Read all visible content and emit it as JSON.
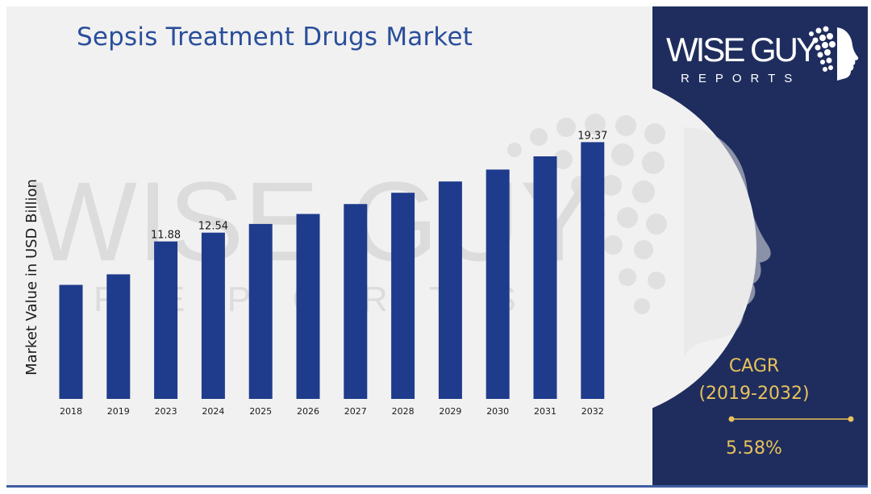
{
  "page": {
    "title": "Sepsis Treatment Drugs Market"
  },
  "brand": {
    "name": "WISE GUY",
    "sub": "REPORTS",
    "watermark_name": "WISE GUY",
    "watermark_sub": "R E P O R T S"
  },
  "cagr": {
    "label": "CAGR",
    "period": "(2019-2032)",
    "value": "5.58%"
  },
  "colors": {
    "bar": "#1f3b8c",
    "title": "#2a4e9b",
    "panel": "#1f2d5e",
    "accent": "#e8c25a",
    "background": "#f1f1f1"
  },
  "chart_data": {
    "type": "bar",
    "title": "Sepsis Treatment Drugs Market",
    "xlabel": "",
    "ylabel": "Market Value in USD Billion",
    "categories": [
      "2018",
      "2019",
      "2023",
      "2024",
      "2025",
      "2026",
      "2027",
      "2028",
      "2029",
      "2030",
      "2031",
      "2032"
    ],
    "values": [
      8.6,
      9.4,
      11.88,
      12.54,
      13.2,
      13.95,
      14.7,
      15.55,
      16.4,
      17.3,
      18.3,
      19.37
    ],
    "data_labels": [
      "",
      "",
      "11.88",
      "12.54",
      "",
      "",
      "",
      "",
      "",
      "",
      "",
      "19.37"
    ],
    "ylim": [
      0,
      20
    ],
    "grid": false,
    "legend": "none"
  }
}
